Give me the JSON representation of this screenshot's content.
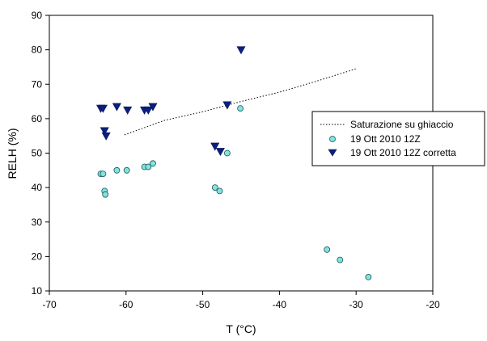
{
  "chart_data": {
    "type": "scatter",
    "title": "",
    "xlabel": "T (°C)",
    "ylabel": "RELH (%)",
    "xlim": [
      -70,
      -20
    ],
    "ylim": [
      10,
      90
    ],
    "xticks": [
      -70,
      -60,
      -50,
      -40,
      -30,
      -20
    ],
    "yticks": [
      10,
      20,
      30,
      40,
      50,
      60,
      70,
      80,
      90
    ],
    "grid": false,
    "legend_position": "right",
    "series": [
      {
        "name": "Saturazione su ghiaccio",
        "kind": "dotted-line",
        "color": "#000000",
        "points": [
          [
            -60.2,
            55.3
          ],
          [
            -55,
            59.5
          ],
          [
            -50,
            62.0
          ],
          [
            -45,
            65.0
          ],
          [
            -40,
            67.7
          ],
          [
            -35,
            71.0
          ],
          [
            -30,
            74.5
          ]
        ]
      },
      {
        "name": "19 Ott 2010 12Z",
        "kind": "circle",
        "color": "#7fe5e0",
        "points": [
          [
            -63.3,
            44
          ],
          [
            -63.0,
            44
          ],
          [
            -62.8,
            39
          ],
          [
            -62.7,
            38
          ],
          [
            -61.2,
            45
          ],
          [
            -59.9,
            45
          ],
          [
            -57.6,
            46
          ],
          [
            -57.1,
            46
          ],
          [
            -56.5,
            47
          ],
          [
            -48.4,
            40
          ],
          [
            -47.8,
            39
          ],
          [
            -46.8,
            50
          ],
          [
            -45.1,
            63
          ],
          [
            -33.8,
            22
          ],
          [
            -32.1,
            19
          ],
          [
            -28.4,
            14
          ]
        ]
      },
      {
        "name": "19 Ott 2010 12Z corretta",
        "kind": "triangle-down",
        "color": "#0b1f80",
        "points": [
          [
            -63.3,
            63
          ],
          [
            -63.0,
            63
          ],
          [
            -62.8,
            56.5
          ],
          [
            -62.6,
            55
          ],
          [
            -61.2,
            63.5
          ],
          [
            -59.8,
            62.5
          ],
          [
            -57.6,
            62.5
          ],
          [
            -57.1,
            62.5
          ],
          [
            -56.5,
            63.5
          ],
          [
            -48.4,
            52
          ],
          [
            -47.7,
            50.5
          ],
          [
            -46.8,
            64
          ],
          [
            -45.0,
            80
          ]
        ]
      }
    ]
  }
}
